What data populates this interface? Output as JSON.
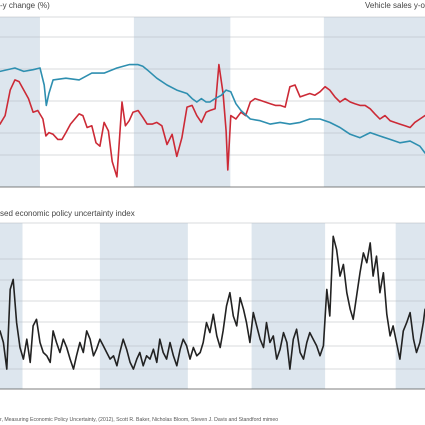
{
  "figure": {
    "source_text": "r, Measuring Economic Policy Uncertainty, (2012), Scott R. Baker, Nicholas Bloom, Steven J. Davis and Standford mimeo"
  },
  "colors": {
    "shade": "#dde6ee",
    "red_series": "#cc2a36",
    "blue_series": "#2e8fb0",
    "black_series": "#222222"
  },
  "chart_data": [
    {
      "type": "line",
      "title": "",
      "left_axis_label": "-y change (%)",
      "right_axis_label": "Vehicle sales y-o",
      "x_range": [
        0,
        100
      ],
      "y_range": [
        0,
        100
      ],
      "grid": true,
      "shaded_periods": [
        [
          0,
          9.4
        ],
        [
          31.5,
          54.2
        ],
        [
          76.2,
          100
        ]
      ],
      "series": [
        {
          "color": "#cc2a36",
          "x": [
            0,
            1.2,
            2.4,
            3.5,
            4.5,
            5.6,
            6.7,
            7.8,
            8.9,
            10.1,
            10.8,
            11.5,
            12.5,
            13.6,
            14.6,
            15.5,
            16.6,
            17.6,
            18.6,
            19.5,
            20.5,
            21.6,
            22.6,
            23.5,
            24.5,
            25.5,
            26.4,
            27.5,
            28.7,
            29.5,
            30.4,
            31.3,
            32.5,
            33.6,
            34.6,
            35.8,
            36.9,
            38.1,
            39.3,
            40.5,
            41.6,
            42.8,
            44.0,
            45.2,
            46.3,
            47.4,
            48.5,
            49.4,
            50.6,
            51.5,
            52.5,
            53.2,
            53.6,
            54.3,
            55.5,
            56.7,
            57.8,
            58.9,
            60.0,
            61.2,
            62.4,
            63.6,
            64.8,
            65.9,
            67.1,
            68.2,
            69.4,
            70.6,
            71.7,
            72.9,
            74.1,
            75.3,
            76.5,
            77.6,
            78.8,
            80.0,
            81.2,
            82.4,
            83.5,
            84.7,
            85.9,
            87.1,
            88.2,
            89.4,
            90.6,
            91.8,
            92.9,
            94.1,
            95.3,
            96.5,
            97.6,
            98.8,
            100
          ],
          "y": [
            37,
            42,
            57,
            63,
            62,
            57,
            52,
            44,
            45,
            40,
            30,
            32,
            31,
            28,
            28,
            32,
            37,
            40,
            43,
            42,
            35,
            36,
            26,
            24,
            38,
            33,
            15,
            6,
            50,
            36,
            39,
            44,
            45,
            41,
            37,
            37,
            38,
            36,
            25,
            31,
            18,
            29,
            47,
            48,
            42,
            38,
            44,
            45,
            46,
            72,
            55,
            33,
            10,
            42,
            40,
            44,
            42,
            50,
            52,
            51,
            50,
            49,
            48,
            48,
            47,
            59,
            60,
            53,
            54,
            55,
            54,
            56,
            59,
            57,
            53,
            50,
            52,
            50,
            49,
            48,
            48,
            46,
            43,
            40,
            42,
            39,
            38,
            37,
            36,
            35,
            38,
            40,
            42
          ]
        },
        {
          "color": "#2e8fb0",
          "x": [
            0,
            3.5,
            5.6,
            7.8,
            9.4,
            10.4,
            10.9,
            11.5,
            12.5,
            15.5,
            18.6,
            21.6,
            24.5,
            27.5,
            30.4,
            32.5,
            33.6,
            34.6,
            36.9,
            39.3,
            41.6,
            44.0,
            45.2,
            46.3,
            47.4,
            48.5,
            49.4,
            50.6,
            52.1,
            53.2,
            54.3,
            55.5,
            56.7,
            58.9,
            61.2,
            63.6,
            65.9,
            68.2,
            70.6,
            72.9,
            75.3,
            77.6,
            80.0,
            81.2,
            82.4,
            84.7,
            87.1,
            89.4,
            91.8,
            94.1,
            96.5,
            98.8,
            100
          ],
          "y": [
            68,
            70,
            68,
            69,
            70,
            60,
            48,
            55,
            63,
            64,
            63,
            67,
            67,
            70,
            72,
            72,
            71,
            69,
            64,
            60,
            57,
            55,
            52,
            50,
            52,
            50,
            50,
            52,
            54,
            57,
            56,
            49,
            45,
            40,
            39,
            37,
            38,
            37,
            38,
            40,
            40,
            38,
            35,
            33,
            31,
            29,
            32,
            30,
            28,
            26,
            27,
            24,
            20
          ]
        }
      ]
    },
    {
      "type": "line",
      "title": "",
      "axis_label": "sed economic policy uncertainty index",
      "x_range": [
        0,
        100
      ],
      "y_range": [
        0,
        100
      ],
      "grid": true,
      "shaded_periods": [
        [
          0,
          5.3
        ],
        [
          23.5,
          44.2
        ],
        [
          59.2,
          76.5
        ],
        [
          93.1,
          100
        ]
      ],
      "series": [
        {
          "color": "#222222",
          "x": [
            0,
            0.8,
            1.6,
            2.4,
            3.1,
            3.9,
            4.7,
            5.5,
            6.3,
            7.1,
            7.8,
            8.6,
            9.4,
            10.2,
            11.0,
            11.8,
            12.5,
            13.3,
            14.1,
            14.9,
            15.7,
            16.5,
            17.3,
            18.0,
            18.8,
            19.6,
            20.4,
            21.2,
            22.0,
            22.7,
            23.5,
            24.3,
            25.1,
            25.9,
            26.7,
            27.5,
            28.2,
            29.0,
            29.8,
            30.6,
            31.4,
            32.2,
            32.9,
            33.7,
            34.5,
            35.3,
            36.1,
            36.9,
            37.6,
            38.4,
            39.2,
            40.0,
            40.8,
            41.6,
            42.4,
            43.1,
            43.9,
            44.7,
            45.5,
            46.3,
            47.1,
            47.8,
            48.6,
            49.4,
            50.2,
            51.0,
            51.8,
            52.5,
            53.3,
            54.1,
            54.9,
            55.7,
            56.5,
            57.3,
            58.0,
            58.8,
            59.6,
            60.4,
            61.2,
            62.0,
            62.7,
            63.5,
            64.3,
            65.1,
            65.9,
            66.7,
            67.5,
            68.2,
            69.0,
            69.8,
            70.6,
            71.4,
            72.2,
            72.9,
            73.7,
            74.5,
            75.3,
            76.1,
            76.9,
            77.6,
            78.4,
            79.2,
            80.0,
            80.8,
            81.6,
            82.4,
            83.1,
            83.9,
            84.7,
            85.5,
            86.3,
            87.1,
            87.8,
            88.6,
            89.4,
            90.2,
            91.0,
            91.8,
            92.5,
            93.3,
            94.1,
            94.9,
            95.7,
            96.5,
            97.3,
            98.0,
            98.8,
            99.6,
            100
          ],
          "y": [
            35,
            28,
            12,
            60,
            66,
            40,
            25,
            18,
            30,
            16,
            38,
            42,
            28,
            22,
            20,
            16,
            35,
            28,
            22,
            30,
            25,
            18,
            12,
            20,
            28,
            22,
            35,
            30,
            20,
            24,
            30,
            26,
            22,
            18,
            20,
            14,
            22,
            30,
            24,
            16,
            12,
            18,
            22,
            14,
            20,
            18,
            24,
            16,
            30,
            22,
            18,
            28,
            20,
            14,
            24,
            30,
            26,
            18,
            25,
            20,
            22,
            28,
            40,
            34,
            45,
            32,
            25,
            35,
            50,
            58,
            44,
            38,
            55,
            48,
            40,
            28,
            46,
            38,
            30,
            25,
            40,
            28,
            32,
            18,
            24,
            34,
            28,
            12,
            30,
            36,
            22,
            18,
            28,
            34,
            30,
            26,
            20,
            26,
            60,
            44,
            92,
            84,
            68,
            75,
            58,
            48,
            42,
            56,
            70,
            82,
            76,
            88,
            68,
            80,
            58,
            70,
            45,
            32,
            38,
            28,
            18,
            35,
            40,
            46,
            30,
            22,
            28,
            40,
            48
          ]
        }
      ]
    }
  ]
}
